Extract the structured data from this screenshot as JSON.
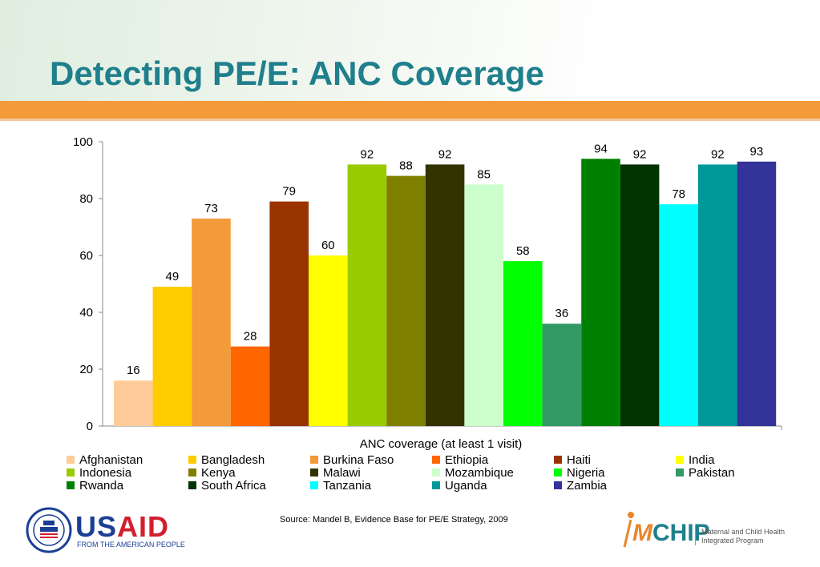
{
  "slide": {
    "title": "Detecting PE/E: ANC Coverage",
    "source": "Source: Mandel B, Evidence Base for PE/E Strategy, 2009"
  },
  "logos": {
    "usaid": {
      "word_part1": "US",
      "word_part2": "AID",
      "tagline": "FROM THE AMERICAN PEOPLE"
    },
    "mchip": {
      "word_m": "M",
      "word_rest": "CHIP",
      "subtitle": "Maternal and Child Health Integrated Program"
    }
  },
  "colors": {
    "title": "#1f7f8c",
    "band": "#f39a3a"
  },
  "chart_data": {
    "type": "bar",
    "title": "",
    "legend_title": "ANC coverage (at least 1 visit)",
    "legend_placement": "bottom",
    "ylim": [
      0,
      100
    ],
    "yticks": [
      0,
      20,
      40,
      60,
      80,
      100
    ],
    "grid": false,
    "series": [
      {
        "name": "Afghanistan",
        "value": 16,
        "color": "#ffcc99"
      },
      {
        "name": "Bangladesh",
        "value": 49,
        "color": "#ffcc00"
      },
      {
        "name": "Burkina Faso",
        "value": 73,
        "color": "#f39a3a"
      },
      {
        "name": "Ethiopia",
        "value": 28,
        "color": "#ff6600"
      },
      {
        "name": "Haiti",
        "value": 79,
        "color": "#993300"
      },
      {
        "name": "India",
        "value": 60,
        "color": "#ffff00"
      },
      {
        "name": "Indonesia",
        "value": 92,
        "color": "#99cc00"
      },
      {
        "name": "Kenya",
        "value": 88,
        "color": "#808000"
      },
      {
        "name": "Malawi",
        "value": 92,
        "color": "#333300"
      },
      {
        "name": "Mozambique",
        "value": 85,
        "color": "#ccffcc"
      },
      {
        "name": "Nigeria",
        "value": 58,
        "color": "#00ff00"
      },
      {
        "name": "Pakistan",
        "value": 36,
        "color": "#339966"
      },
      {
        "name": "Rwanda",
        "value": 94,
        "color": "#008000"
      },
      {
        "name": "South Africa",
        "value": 92,
        "color": "#003300"
      },
      {
        "name": "Tanzania",
        "value": 78,
        "color": "#00ffff"
      },
      {
        "name": "Uganda",
        "value": 92,
        "color": "#009999"
      },
      {
        "name": "Zambia",
        "value": 93,
        "color": "#333399"
      }
    ]
  }
}
